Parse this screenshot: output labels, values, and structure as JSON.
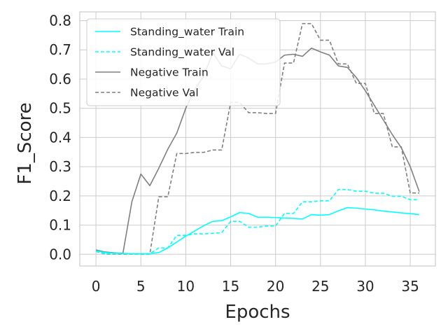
{
  "chart_data": {
    "type": "line",
    "xlabel": "Epochs",
    "ylabel": "F1_Score",
    "xlim": [
      -1.8,
      37.8
    ],
    "ylim": [
      -0.04,
      0.83
    ],
    "xticks": [
      0,
      5,
      10,
      15,
      20,
      25,
      30,
      35
    ],
    "yticks": [
      0.0,
      0.1,
      0.2,
      0.3,
      0.4,
      0.5,
      0.6,
      0.7,
      0.8
    ],
    "xtick_labels": [
      "0",
      "5",
      "10",
      "15",
      "20",
      "25",
      "30",
      "35"
    ],
    "ytick_labels": [
      "0.0",
      "0.1",
      "0.2",
      "0.3",
      "0.4",
      "0.5",
      "0.6",
      "0.7",
      "0.8"
    ],
    "grid": true,
    "legend_position": "top-left",
    "x": [
      0,
      1,
      2,
      3,
      4,
      5,
      6,
      7,
      8,
      9,
      10,
      11,
      12,
      13,
      14,
      15,
      16,
      17,
      18,
      19,
      20,
      21,
      22,
      23,
      24,
      25,
      26,
      27,
      28,
      29,
      30,
      31,
      32,
      33,
      34,
      35,
      36
    ],
    "series": [
      {
        "name": "Standing_water Train",
        "color": "#00ffff",
        "style": "solid",
        "values": [
          0.012,
          0.006,
          0.004,
          0.003,
          0.002,
          0.002,
          0.002,
          0.006,
          0.022,
          0.042,
          0.062,
          0.08,
          0.098,
          0.113,
          0.115,
          0.128,
          0.143,
          0.14,
          0.127,
          0.127,
          0.126,
          0.124,
          0.123,
          0.121,
          0.136,
          0.134,
          0.136,
          0.149,
          0.16,
          0.158,
          0.155,
          0.152,
          0.148,
          0.145,
          0.142,
          0.139,
          0.136
        ]
      },
      {
        "name": "Standing_water Val",
        "color": "#00ffff",
        "style": "dashed",
        "values": [
          0.01,
          0.002,
          0.002,
          0.002,
          0.002,
          0.002,
          0.002,
          0.022,
          0.022,
          0.065,
          0.065,
          0.07,
          0.07,
          0.072,
          0.074,
          0.113,
          0.113,
          0.093,
          0.093,
          0.097,
          0.097,
          0.14,
          0.14,
          0.18,
          0.18,
          0.183,
          0.183,
          0.222,
          0.222,
          0.216,
          0.216,
          0.209,
          0.209,
          0.199,
          0.199,
          0.187,
          0.187
        ]
      },
      {
        "name": "Negative Train",
        "color": "#808080",
        "style": "solid",
        "values": [
          0.015,
          0.008,
          0.005,
          0.003,
          0.18,
          0.275,
          0.235,
          0.295,
          0.36,
          0.415,
          0.5,
          0.565,
          0.61,
          0.69,
          0.645,
          0.635,
          0.685,
          0.672,
          0.652,
          0.652,
          0.658,
          0.682,
          0.685,
          0.678,
          0.706,
          0.693,
          0.682,
          0.645,
          0.64,
          0.605,
          0.56,
          0.51,
          0.46,
          0.41,
          0.365,
          0.3,
          0.215
        ]
      },
      {
        "name": "Negative Val",
        "color": "#808080",
        "style": "dashed",
        "values": [
          0.01,
          0.001,
          0.001,
          0.001,
          0.001,
          0.001,
          0.001,
          0.197,
          0.197,
          0.345,
          0.345,
          0.349,
          0.349,
          0.357,
          0.357,
          0.52,
          0.52,
          0.485,
          0.485,
          0.482,
          0.482,
          0.655,
          0.655,
          0.79,
          0.79,
          0.733,
          0.733,
          0.652,
          0.652,
          0.585,
          0.585,
          0.482,
          0.482,
          0.368,
          0.368,
          0.21,
          0.21
        ]
      }
    ]
  }
}
